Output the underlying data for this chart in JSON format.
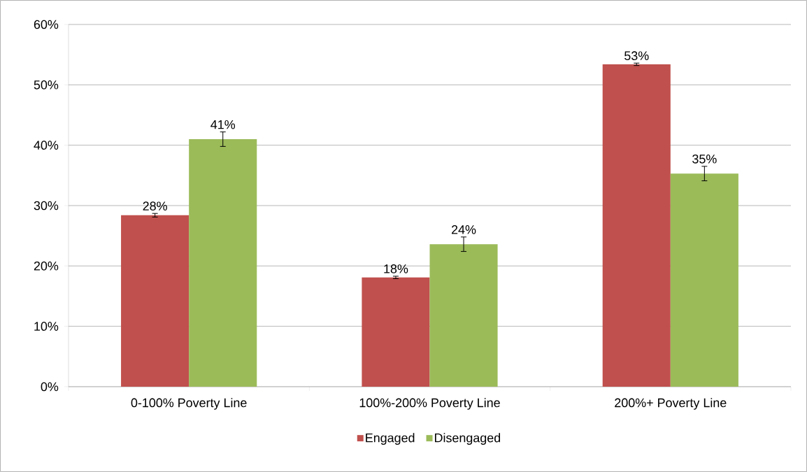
{
  "chart_data": {
    "type": "bar",
    "categories": [
      "0-100% Poverty Line",
      "100%-200% Poverty Line",
      "200%+ Poverty Line"
    ],
    "series": [
      {
        "name": "Engaged",
        "color": "#c0504d",
        "values": [
          28.4,
          18.1,
          53.4
        ],
        "errors": [
          0.3,
          0.2,
          0.2
        ],
        "value_labels": [
          "28%",
          "18%",
          "53%"
        ]
      },
      {
        "name": "Disengaged",
        "color": "#9bbb59",
        "values": [
          41.0,
          23.6,
          35.3
        ],
        "errors": [
          1.2,
          1.2,
          1.2
        ],
        "value_labels": [
          "41%",
          "24%",
          "35%"
        ]
      }
    ],
    "ylim": [
      0,
      60
    ],
    "yticks": [
      {
        "value": 0,
        "label": "0%"
      },
      {
        "value": 10,
        "label": "10%"
      },
      {
        "value": 20,
        "label": "20%"
      },
      {
        "value": 30,
        "label": "30%"
      },
      {
        "value": 40,
        "label": "40%"
      },
      {
        "value": 50,
        "label": "50%"
      },
      {
        "value": 60,
        "label": "60%"
      }
    ],
    "grid": "y",
    "legend": "bottom"
  }
}
